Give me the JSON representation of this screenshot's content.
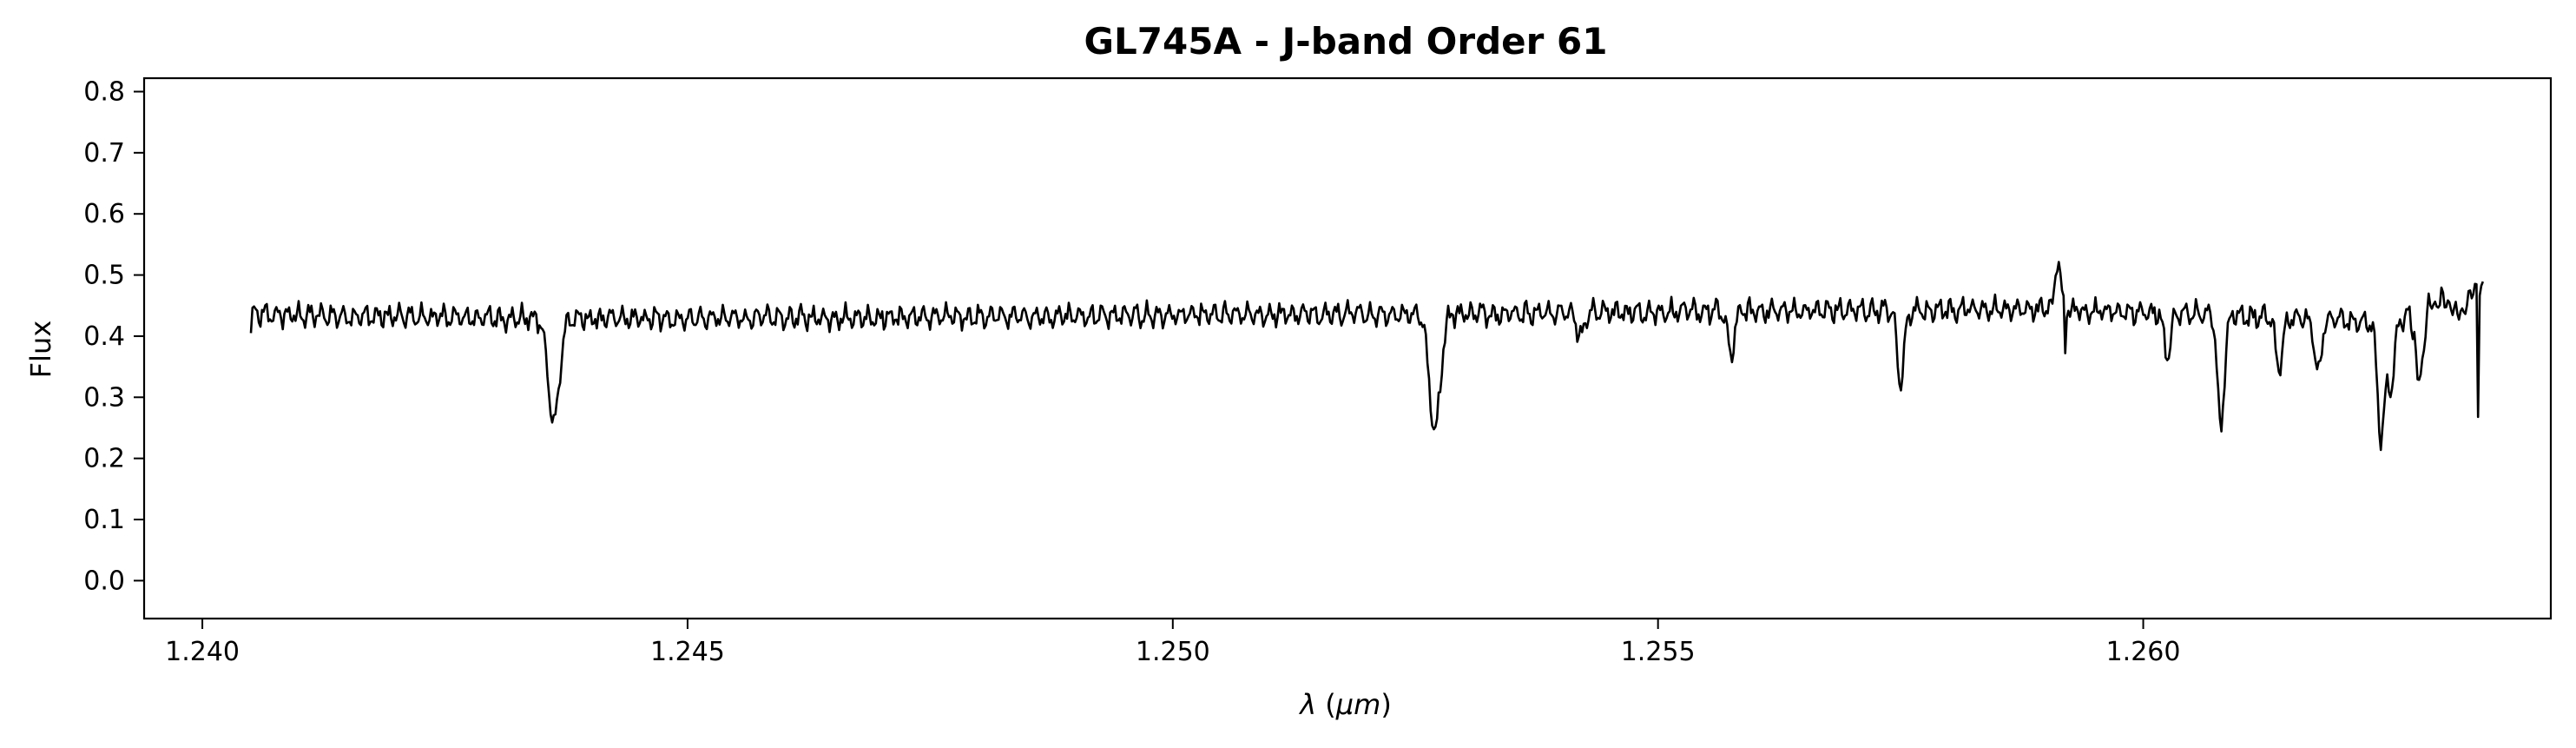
{
  "chart_data": {
    "type": "line",
    "title": "GL745A - J-band Order 61",
    "xlabel": "λ (μm)",
    "ylabel": "Flux",
    "xlim": [
      1.2394,
      1.2642
    ],
    "ylim": [
      -0.062,
      0.822
    ],
    "xticks": [
      1.24,
      1.245,
      1.25,
      1.255,
      1.26
    ],
    "xtick_labels": [
      "1.240",
      "1.245",
      "1.250",
      "1.255",
      "1.260"
    ],
    "yticks": [
      0.0,
      0.1,
      0.2,
      0.3,
      0.4,
      0.5,
      0.6,
      0.7,
      0.8
    ],
    "ytick_labels": [
      "0.0",
      "0.1",
      "0.2",
      "0.3",
      "0.4",
      "0.5",
      "0.6",
      "0.7",
      "0.8"
    ],
    "grid": false,
    "line_color": "#000000",
    "x_range": [
      1.2405,
      1.2635
    ],
    "continuum": [
      [
        1.2405,
        0.435
      ],
      [
        1.244,
        0.428
      ],
      [
        1.248,
        0.432
      ],
      [
        1.252,
        0.436
      ],
      [
        1.256,
        0.441
      ],
      [
        1.259,
        0.444
      ],
      [
        1.261,
        0.434
      ],
      [
        1.2625,
        0.422
      ],
      [
        1.2635,
        0.455
      ]
    ],
    "absorption_lines": [
      {
        "x": 1.24362,
        "depth": 0.17,
        "width": 8e-05
      },
      {
        "x": 1.2527,
        "depth": 0.19,
        "width": 8e-05
      },
      {
        "x": 1.2542,
        "depth": 0.04,
        "width": 5e-05
      },
      {
        "x": 1.25575,
        "depth": 0.07,
        "width": 5e-05
      },
      {
        "x": 1.2575,
        "depth": 0.12,
        "width": 5e-05
      },
      {
        "x": 1.26025,
        "depth": 0.07,
        "width": 5e-05
      },
      {
        "x": 1.2608,
        "depth": 0.18,
        "width": 5e-05
      },
      {
        "x": 1.2614,
        "depth": 0.08,
        "width": 5e-05
      },
      {
        "x": 1.2618,
        "depth": 0.09,
        "width": 5e-05
      },
      {
        "x": 1.26255,
        "depth": 0.11,
        "width": 5e-05
      },
      {
        "x": 1.2632,
        "depth": 0.07,
        "width": 5e-05
      },
      {
        "x": 1.26245,
        "depth": 0.19,
        "width": 5e-05
      },
      {
        "x": 1.26285,
        "depth": 0.15,
        "width": 5e-05
      },
      {
        "x": 1.2633,
        "depth": 0.14,
        "width": 5e-05
      }
    ],
    "spikes": [
      {
        "x": 1.25912,
        "height": 0.085,
        "width": 4e-05
      }
    ],
    "dips_narrow": [
      {
        "x": 1.2405,
        "value": 0.405
      },
      {
        "x": 1.2592,
        "value": 0.372
      },
      {
        "x": 1.26345,
        "value": 0.268
      }
    ],
    "end_rise": {
      "x_start": 1.2627,
      "x_end": 1.2635,
      "value": 0.478
    }
  }
}
